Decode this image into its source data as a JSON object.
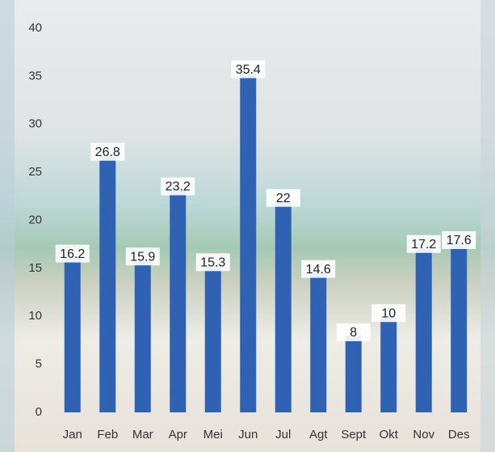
{
  "chart_data": {
    "type": "bar",
    "categories": [
      "Jan",
      "Feb",
      "Mar",
      "Apr",
      "Mei",
      "Jun",
      "Jul",
      "Agt",
      "Sept",
      "Okt",
      "Nov",
      "Des"
    ],
    "values": [
      16.2,
      26.8,
      15.9,
      23.2,
      15.3,
      35.4,
      22,
      14.6,
      8,
      10,
      17.2,
      17.6
    ],
    "color": "#2f62b3",
    "ylim": [
      0,
      40
    ],
    "yticks": [
      0,
      5,
      10,
      15,
      20,
      25,
      30,
      35,
      40
    ],
    "grid": false
  }
}
